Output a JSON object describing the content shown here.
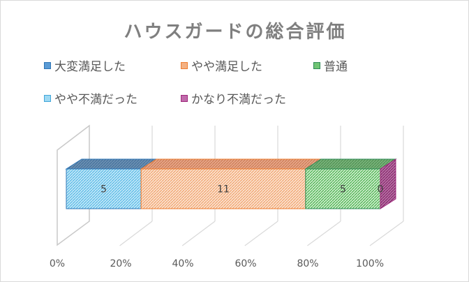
{
  "chart_data": {
    "type": "bar",
    "orientation": "horizontal-stacked-100-percent-3d",
    "title": "ハウスガードの総合評価",
    "categories": [
      ""
    ],
    "series": [
      {
        "name": "大変満足した",
        "values": [
          5
        ],
        "color": "#2e75b6",
        "label": "5"
      },
      {
        "name": "やや満足した",
        "values": [
          11
        ],
        "color": "#ed7d31",
        "label": "11"
      },
      {
        "name": "普通",
        "values": [
          5
        ],
        "color": "#38a33c",
        "label": "5"
      },
      {
        "name": "やや不満だった",
        "values": [
          0
        ],
        "color": "#5bc0eb",
        "label": ""
      },
      {
        "name": "かなり不満だった",
        "values": [
          0
        ],
        "color": "#a0287c",
        "label": "0"
      }
    ],
    "bar_fill_colors": [
      "#5bc0eb",
      "#ed7d31",
      "#38a33c",
      "#5bc0eb",
      "#a0287c"
    ],
    "x_ticks": [
      "0%",
      "20%",
      "40%",
      "60%",
      "80%",
      "100%"
    ],
    "xlim": [
      0,
      100
    ],
    "legend_position": "top",
    "grid": true
  }
}
